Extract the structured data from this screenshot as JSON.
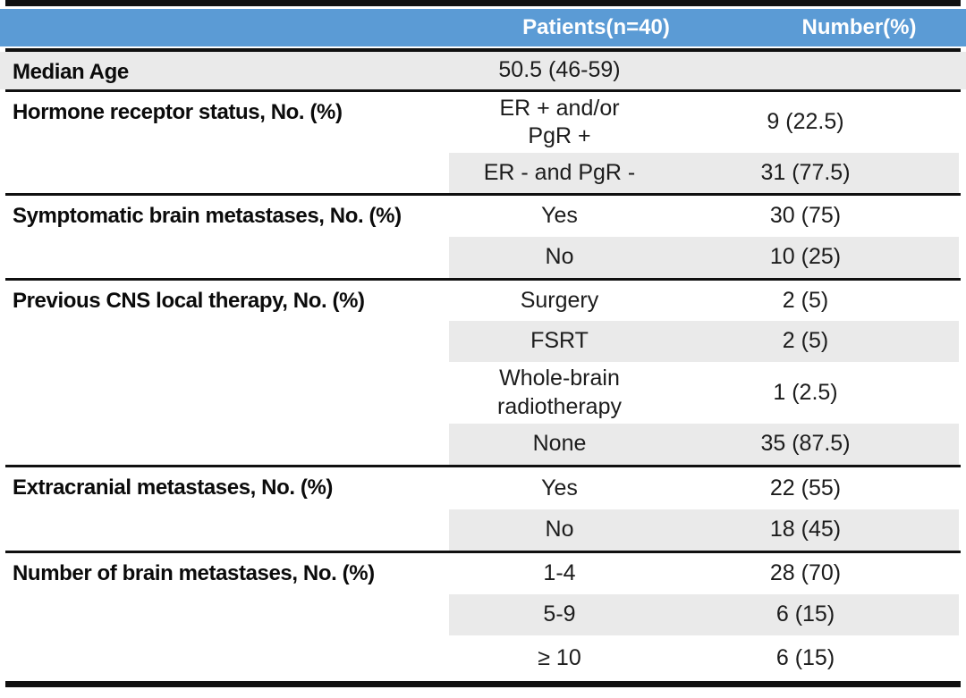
{
  "colors": {
    "header_bg": "#5B9BD5",
    "header_text": "#FFFFFF",
    "row_shade": "#EAEAEA",
    "rule": "#101010"
  },
  "header": {
    "col1": "",
    "col2": "Patients(n=40)",
    "col3": "Number(%)"
  },
  "table": {
    "sections": [
      {
        "label": "Median Age",
        "rows": [
          {
            "value": "50.5 (46-59)",
            "number": ""
          }
        ]
      },
      {
        "label": "Hormone receptor status, No. (%)",
        "rows": [
          {
            "value": "ER + and/or\nPgR +",
            "number": "9 (22.5)"
          },
          {
            "value": "ER - and PgR -",
            "number": "31 (77.5)"
          }
        ]
      },
      {
        "label": "Symptomatic brain metastases, No. (%)",
        "rows": [
          {
            "value": "Yes",
            "number": "30 (75)"
          },
          {
            "value": "No",
            "number": "10 (25)"
          }
        ]
      },
      {
        "label": "Previous CNS local therapy, No. (%)",
        "rows": [
          {
            "value": "Surgery",
            "number": "2 (5)"
          },
          {
            "value": "FSRT",
            "number": "2 (5)"
          },
          {
            "value": "Whole-brain\nradiotherapy",
            "number": "1 (2.5)"
          },
          {
            "value": "None",
            "number": "35 (87.5)"
          }
        ]
      },
      {
        "label": "Extracranial metastases, No. (%)",
        "rows": [
          {
            "value": "Yes",
            "number": "22 (55)"
          },
          {
            "value": "No",
            "number": "18 (45)"
          }
        ]
      },
      {
        "label": "Number of brain metastases, No. (%)",
        "rows": [
          {
            "value": "1-4",
            "number": "28 (70)"
          },
          {
            "value": "5-9",
            "number": "6 (15)"
          },
          {
            "value": "≥ 10",
            "number": "6 (15)"
          }
        ]
      }
    ]
  }
}
